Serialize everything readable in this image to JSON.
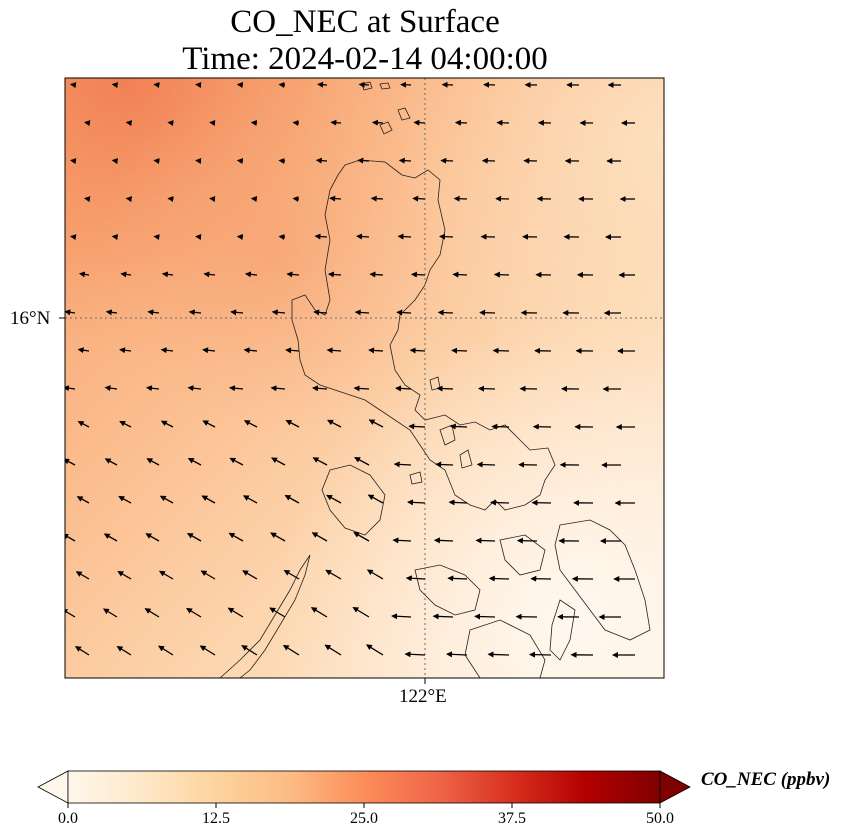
{
  "title": {
    "line1": "CO_NEC at Surface",
    "line2": "Time: 2024-02-14 04:00:00"
  },
  "map": {
    "projection_extent": {
      "lon_min": 118.0,
      "lon_max": 124.7,
      "lat_min": 12.1,
      "lat_max": 18.8
    },
    "gridlines": {
      "lat": 16,
      "lon": 122
    },
    "lat_tick_label": "16°N",
    "lon_tick_label": "122°E",
    "field_description": "CO concentration shaded with arrows showing near-surface wind (predominantly easterly)",
    "colors": {
      "high": "#f5875a",
      "mid": "#fbb98c",
      "low": "#fef0e1",
      "coast": "#222222",
      "gridline": "#6b6b6b"
    }
  },
  "colorbar": {
    "label": "CO_NEC (ppbv)",
    "min": 0.0,
    "max": 50.0,
    "ticks": [
      "0.0",
      "12.5",
      "25.0",
      "37.5",
      "50.0"
    ],
    "colormap": "OrRd",
    "extend": "both",
    "stops": [
      "#fff7ec",
      "#fee8c8",
      "#fdd49e",
      "#fdbb84",
      "#fc8d59",
      "#ef6548",
      "#d7301f",
      "#b30000",
      "#7f0000"
    ]
  }
}
